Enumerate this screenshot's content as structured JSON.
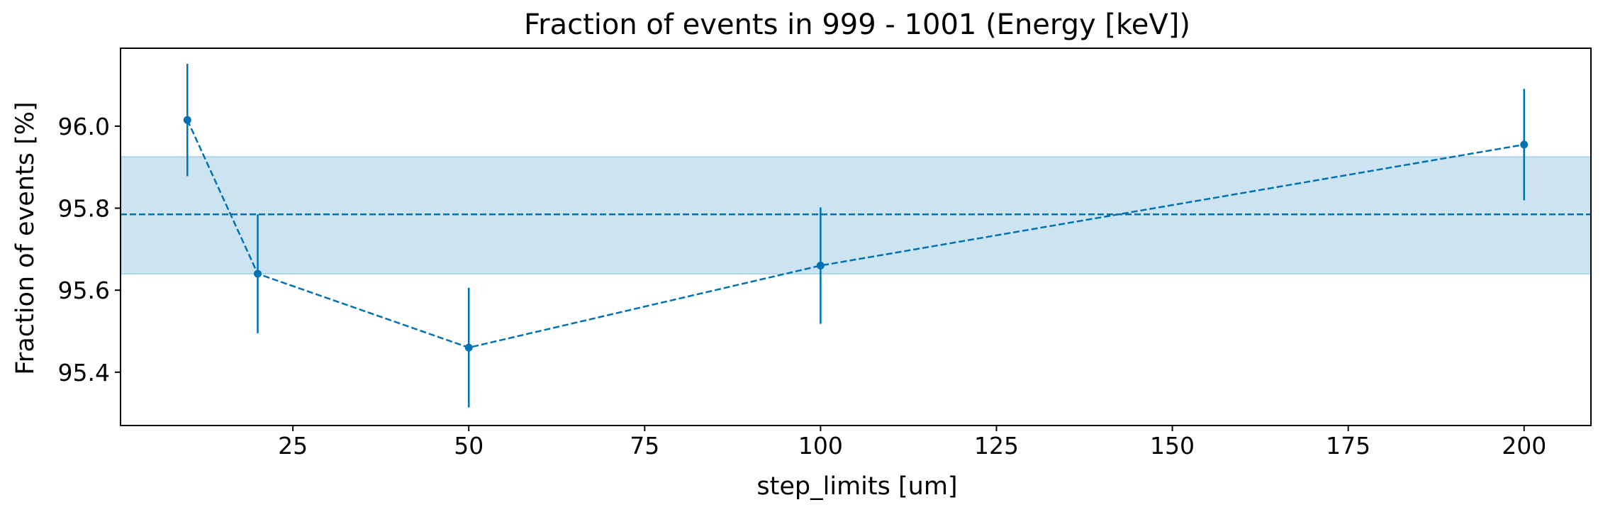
{
  "chart_data": {
    "type": "line",
    "title": "Fraction of events in 999 - 1001 (Energy [keV])",
    "xlabel": "step_limits [um]",
    "ylabel": "Fraction of events [%]",
    "xlim": [
      0.5,
      209.5
    ],
    "ylim": [
      95.27,
      96.19
    ],
    "x_ticks": [
      25,
      50,
      75,
      100,
      125,
      150,
      175,
      200
    ],
    "x_tick_labels": [
      "25",
      "50",
      "75",
      "100",
      "125",
      "150",
      "175",
      "200"
    ],
    "y_ticks": [
      95.4,
      95.6,
      95.8,
      96.0
    ],
    "y_tick_labels": [
      "95.4",
      "95.6",
      "95.8",
      "96.0"
    ],
    "grid": false,
    "series": [
      {
        "name": "fraction",
        "x": [
          10,
          20,
          50,
          100,
          200
        ],
        "y": [
          96.015,
          95.64,
          95.46,
          95.66,
          95.955
        ],
        "yerr": [
          0.137,
          0.145,
          0.146,
          0.142,
          0.136
        ],
        "color": "#0072b2",
        "linestyle": "dashed",
        "marker": "circle"
      }
    ],
    "reference": {
      "mean": 95.785,
      "band": [
        95.64,
        95.925
      ],
      "color": "#0072b2",
      "band_color": "#cce3f2",
      "linestyle": "dashed"
    }
  }
}
